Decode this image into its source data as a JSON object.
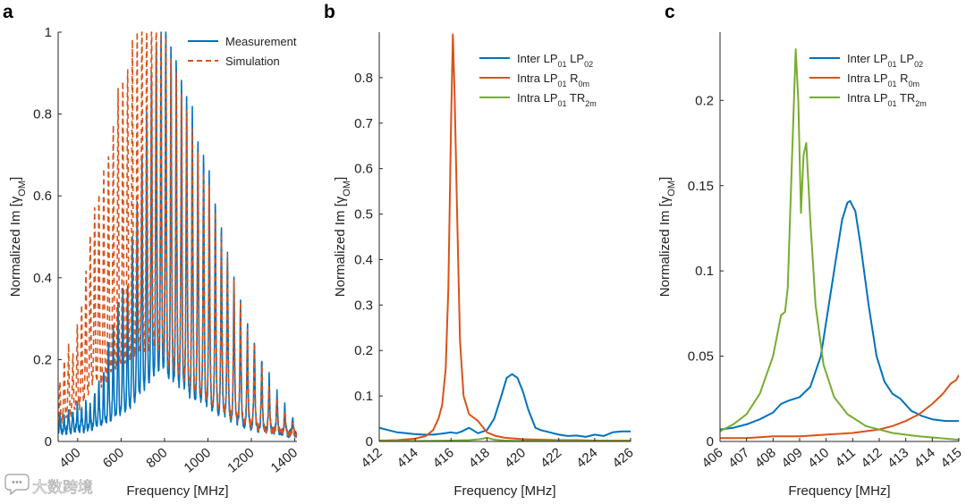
{
  "panels": [
    {
      "id": "a",
      "letter": "a",
      "plot": {
        "x0": 65,
        "x1": 332,
        "y0": 36,
        "y1": 494
      },
      "xrange": [
        310,
        1410
      ],
      "yrange": [
        0,
        1
      ],
      "xticks": [
        400,
        600,
        800,
        1000,
        1200,
        1400
      ],
      "xtick_labels": [
        "400",
        "600",
        "800",
        "1000",
        "1200",
        "1400"
      ],
      "xtick_rotate": -40,
      "yticks": [
        0,
        0.2,
        0.4,
        0.6,
        0.8,
        1
      ],
      "ytick_labels": [
        "0",
        "0.2",
        "0.4",
        "0.6",
        "0.8",
        "1"
      ],
      "xlabel": "Frequency [MHz]",
      "ylabel": "Normalized Im [γOM]",
      "legend": {
        "pos": [
          210,
          46
        ],
        "items": [
          {
            "label": "Measurement",
            "sub": [],
            "color": "#0072BD",
            "dash": false
          },
          {
            "label": "Simulation",
            "sub": [],
            "color": "#D95319",
            "dash": true
          }
        ]
      }
    },
    {
      "id": "b",
      "letter": "b",
      "plot": {
        "x0": 424,
        "x1": 705,
        "y0": 36,
        "y1": 494
      },
      "xrange": [
        412,
        426
      ],
      "yrange": [
        0,
        0.9
      ],
      "xticks": [
        412,
        414,
        416,
        418,
        420,
        422,
        424,
        426
      ],
      "xtick_labels": [
        "412",
        "414",
        "416",
        "418",
        "420",
        "422",
        "424",
        "426"
      ],
      "xtick_rotate": -40,
      "yticks": [
        0,
        0.1,
        0.2,
        0.3,
        0.4,
        0.5,
        0.6,
        0.7,
        0.8
      ],
      "ytick_labels": [
        "0",
        "0.1",
        "0.2",
        "0.3",
        "0.4",
        "0.5",
        "0.6",
        "0.7",
        "0.8"
      ],
      "xlabel": "Frequency [MHz]",
      "ylabel": "Normalized Im [γOM]",
      "legend": {
        "pos": [
          536,
          65
        ],
        "items": [
          {
            "label": "Inter LP",
            "sub": [
              "01",
              " LP",
              "02"
            ],
            "color": "#0072BD",
            "dash": false
          },
          {
            "label": "Intra LP",
            "sub": [
              "01",
              " R",
              "0m"
            ],
            "color": "#D95319",
            "dash": false
          },
          {
            "label": "Intra LP",
            "sub": [
              "01",
              " TR",
              "2m"
            ],
            "color": "#77AC30",
            "dash": false
          }
        ]
      }
    },
    {
      "id": "c",
      "letter": "c",
      "plot": {
        "x0": 805,
        "x1": 1072,
        "y0": 36,
        "y1": 494
      },
      "xrange": [
        406,
        415
      ],
      "yrange": [
        0,
        0.24
      ],
      "xticks": [
        406,
        407,
        408,
        409,
        410,
        411,
        412,
        413,
        414,
        415
      ],
      "xtick_labels": [
        "406",
        "407",
        "408",
        "409",
        "410",
        "411",
        "412",
        "413",
        "414",
        "415"
      ],
      "xtick_rotate": -40,
      "yticks": [
        0,
        0.05,
        0.1,
        0.15,
        0.2
      ],
      "ytick_labels": [
        "0",
        "0.05",
        "0.1",
        "0.15",
        "0.2"
      ],
      "xlabel": "Frequency [MHz]",
      "ylabel": "Normalized Im [γOM]",
      "legend": {
        "pos": [
          905,
          65
        ],
        "items": [
          {
            "label": "Inter LP",
            "sub": [
              "01",
              " LP",
              "02"
            ],
            "color": "#0072BD",
            "dash": false
          },
          {
            "label": "Intra LP",
            "sub": [
              "01",
              " R",
              "0m"
            ],
            "color": "#D95319",
            "dash": false
          },
          {
            "label": "Intra LP",
            "sub": [
              "01",
              " TR",
              "2m"
            ],
            "color": "#77AC30",
            "dash": false
          }
        ]
      }
    }
  ],
  "chart_data": [
    {
      "type": "line",
      "panel": "a",
      "xlabel": "Frequency [MHz]",
      "ylabel": "Normalized Im [γOM]",
      "xlim": [
        310,
        1410
      ],
      "ylim": [
        0,
        1
      ],
      "baseline": 0.015,
      "legend_placement": "top-right",
      "series": [
        {
          "name": "Measurement",
          "color": "#0072BD",
          "style": "solid",
          "peaks_x": [
            318,
            338,
            358,
            378,
            398,
            418,
            438,
            458,
            478,
            498,
            520,
            542,
            564,
            586,
            608,
            630,
            652,
            674,
            696,
            718,
            740,
            762,
            784,
            806,
            830,
            854,
            878,
            902,
            928,
            954,
            980,
            1006,
            1034,
            1062,
            1090,
            1120,
            1150,
            1182,
            1214,
            1248,
            1282,
            1318,
            1354,
            1390
          ],
          "peaks_y": [
            0.055,
            0.04,
            0.06,
            0.05,
            0.07,
            0.06,
            0.08,
            0.07,
            0.1,
            0.12,
            0.15,
            0.22,
            0.25,
            0.3,
            0.34,
            0.35,
            0.45,
            0.55,
            0.64,
            0.75,
            0.85,
            0.92,
            0.98,
            1.0,
            0.93,
            0.89,
            0.85,
            0.8,
            0.78,
            0.7,
            0.66,
            0.62,
            0.56,
            0.5,
            0.44,
            0.38,
            0.32,
            0.26,
            0.23,
            0.18,
            0.14,
            0.1,
            0.07,
            0.04
          ]
        },
        {
          "name": "Simulation",
          "color": "#D95319",
          "style": "dashed",
          "peaks_x": [
            318,
            338,
            358,
            378,
            398,
            418,
            438,
            458,
            478,
            498,
            520,
            542,
            564,
            586,
            608,
            630,
            652,
            674,
            696,
            718,
            740,
            762,
            784,
            806,
            830,
            854,
            878,
            902,
            928,
            954,
            980,
            1006,
            1034,
            1062,
            1090,
            1120,
            1150,
            1182,
            1214,
            1248,
            1282,
            1318,
            1354,
            1390
          ],
          "peaks_y": [
            0.12,
            0.17,
            0.2,
            0.18,
            0.25,
            0.28,
            0.38,
            0.45,
            0.52,
            0.55,
            0.6,
            0.65,
            0.72,
            0.79,
            0.81,
            0.84,
            0.9,
            0.95,
            0.98,
            1.0,
            1.0,
            1.0,
            0.98,
            0.93,
            0.88,
            0.85,
            0.8,
            0.76,
            0.71,
            0.66,
            0.62,
            0.58,
            0.53,
            0.47,
            0.42,
            0.36,
            0.31,
            0.25,
            0.21,
            0.16,
            0.12,
            0.09,
            0.06,
            0.03
          ]
        }
      ]
    },
    {
      "type": "line",
      "panel": "b",
      "xlabel": "Frequency [MHz]",
      "ylabel": "Normalized Im [γOM]",
      "xlim": [
        412,
        426
      ],
      "ylim": [
        0,
        0.9
      ],
      "legend_placement": "top-right",
      "series": [
        {
          "name": "Inter LP01 LP02",
          "color": "#0072BD",
          "x": [
            412,
            412.5,
            413,
            413.5,
            414,
            414.5,
            415,
            415.5,
            416,
            416.3,
            416.6,
            417,
            417.5,
            418,
            418.4,
            418.8,
            419.1,
            419.4,
            419.7,
            420,
            420.3,
            420.7,
            421,
            421.5,
            422,
            422.5,
            423,
            423.5,
            424,
            424.5,
            425,
            425.5,
            426
          ],
          "y": [
            0.03,
            0.025,
            0.02,
            0.018,
            0.016,
            0.015,
            0.015,
            0.017,
            0.02,
            0.018,
            0.022,
            0.03,
            0.018,
            0.025,
            0.05,
            0.1,
            0.14,
            0.148,
            0.14,
            0.11,
            0.07,
            0.03,
            0.025,
            0.02,
            0.015,
            0.012,
            0.013,
            0.01,
            0.015,
            0.012,
            0.02,
            0.022,
            0.022
          ]
        },
        {
          "name": "Intra LP01 R0m",
          "color": "#D95319",
          "x": [
            412,
            413,
            414,
            414.6,
            415,
            415.3,
            415.5,
            415.7,
            415.85,
            416,
            416.1,
            416.2,
            416.35,
            416.5,
            416.7,
            417,
            417.5,
            418,
            418.5,
            419,
            420,
            421,
            422,
            423,
            424,
            425,
            426
          ],
          "y": [
            0.002,
            0.003,
            0.006,
            0.012,
            0.025,
            0.05,
            0.08,
            0.16,
            0.34,
            0.7,
            0.895,
            0.76,
            0.48,
            0.22,
            0.1,
            0.06,
            0.045,
            0.02,
            0.012,
            0.008,
            0.005,
            0.004,
            0.003,
            0.003,
            0.002,
            0.002,
            0.002
          ]
        },
        {
          "name": "Intra LP01 TR2m",
          "color": "#77AC30",
          "x": [
            412,
            414,
            416,
            417,
            417.6,
            418,
            418.4,
            419,
            420,
            422,
            424,
            426
          ],
          "y": [
            0.001,
            0.001,
            0.002,
            0.003,
            0.005,
            0.008,
            0.004,
            0.002,
            0.001,
            0.001,
            0.001,
            0.001
          ]
        }
      ]
    },
    {
      "type": "line",
      "panel": "c",
      "xlabel": "Frequency [MHz]",
      "ylabel": "Normalized Im [γOM]",
      "xlim": [
        406,
        415
      ],
      "ylim": [
        0,
        0.24
      ],
      "legend_placement": "top-right",
      "series": [
        {
          "name": "Inter LP01 LP02",
          "color": "#0072BD",
          "x": [
            406,
            406.5,
            407,
            407.5,
            408,
            408.3,
            408.6,
            409,
            409.4,
            409.8,
            410.1,
            410.4,
            410.6,
            410.8,
            410.9,
            411.1,
            411.3,
            411.6,
            411.9,
            412.2,
            412.5,
            412.8,
            413.2,
            413.6,
            414,
            414.5,
            415
          ],
          "y": [
            0.007,
            0.008,
            0.01,
            0.013,
            0.017,
            0.022,
            0.024,
            0.026,
            0.032,
            0.05,
            0.08,
            0.11,
            0.13,
            0.14,
            0.141,
            0.135,
            0.115,
            0.08,
            0.05,
            0.035,
            0.028,
            0.025,
            0.018,
            0.015,
            0.013,
            0.012,
            0.012
          ]
        },
        {
          "name": "Intra LP01 R0m",
          "color": "#D95319",
          "x": [
            406,
            407,
            408,
            409,
            410,
            411,
            412,
            412.5,
            413,
            413.5,
            414,
            414.4,
            414.7,
            414.9,
            415
          ],
          "y": [
            0.002,
            0.002,
            0.003,
            0.003,
            0.004,
            0.005,
            0.007,
            0.009,
            0.012,
            0.016,
            0.022,
            0.028,
            0.034,
            0.036,
            0.039
          ]
        },
        {
          "name": "Intra LP01 TR2m",
          "color": "#77AC30",
          "x": [
            406,
            406.5,
            407,
            407.5,
            408,
            408.3,
            408.45,
            408.55,
            408.7,
            408.85,
            408.95,
            409.05,
            409.15,
            409.25,
            409.4,
            409.6,
            409.9,
            410.3,
            410.8,
            411.5,
            412.5,
            413.5,
            415
          ],
          "y": [
            0.006,
            0.01,
            0.016,
            0.028,
            0.05,
            0.074,
            0.076,
            0.09,
            0.16,
            0.23,
            0.2,
            0.134,
            0.168,
            0.175,
            0.13,
            0.08,
            0.045,
            0.026,
            0.016,
            0.009,
            0.005,
            0.003,
            0.001
          ]
        }
      ]
    }
  ],
  "watermark": {
    "text": "大数跨境",
    "icon": "chat-bubble-icon"
  }
}
